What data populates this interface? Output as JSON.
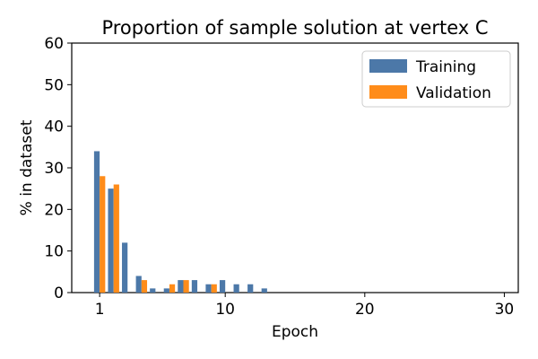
{
  "chart_data": {
    "type": "bar",
    "title": "Proportion of sample solution at vertex C",
    "xlabel": "Epoch",
    "ylabel": "% in dataset",
    "xlim": [
      -1,
      31
    ],
    "ylim": [
      0,
      60
    ],
    "xticks": [
      1,
      10,
      20,
      30
    ],
    "yticks": [
      0,
      10,
      20,
      30,
      40,
      50,
      60
    ],
    "grid": false,
    "legend_position": "top-right",
    "series": [
      {
        "name": "Training",
        "color": "#4c78a8",
        "points": [
          {
            "x": 1,
            "y": 34
          },
          {
            "x": 2,
            "y": 25
          },
          {
            "x": 3,
            "y": 12
          },
          {
            "x": 4,
            "y": 4
          },
          {
            "x": 5,
            "y": 1
          },
          {
            "x": 6,
            "y": 1
          },
          {
            "x": 7,
            "y": 3
          },
          {
            "x": 8,
            "y": 3
          },
          {
            "x": 9,
            "y": 2
          },
          {
            "x": 10,
            "y": 3
          },
          {
            "x": 11,
            "y": 2
          },
          {
            "x": 12,
            "y": 2
          },
          {
            "x": 13,
            "y": 1
          }
        ]
      },
      {
        "name": "Validation",
        "color": "#ff8c1a",
        "points": [
          {
            "x": 1,
            "y": 28
          },
          {
            "x": 2,
            "y": 26
          },
          {
            "x": 4,
            "y": 3
          },
          {
            "x": 6,
            "y": 2
          },
          {
            "x": 7,
            "y": 3
          },
          {
            "x": 9,
            "y": 2
          }
        ]
      }
    ]
  }
}
